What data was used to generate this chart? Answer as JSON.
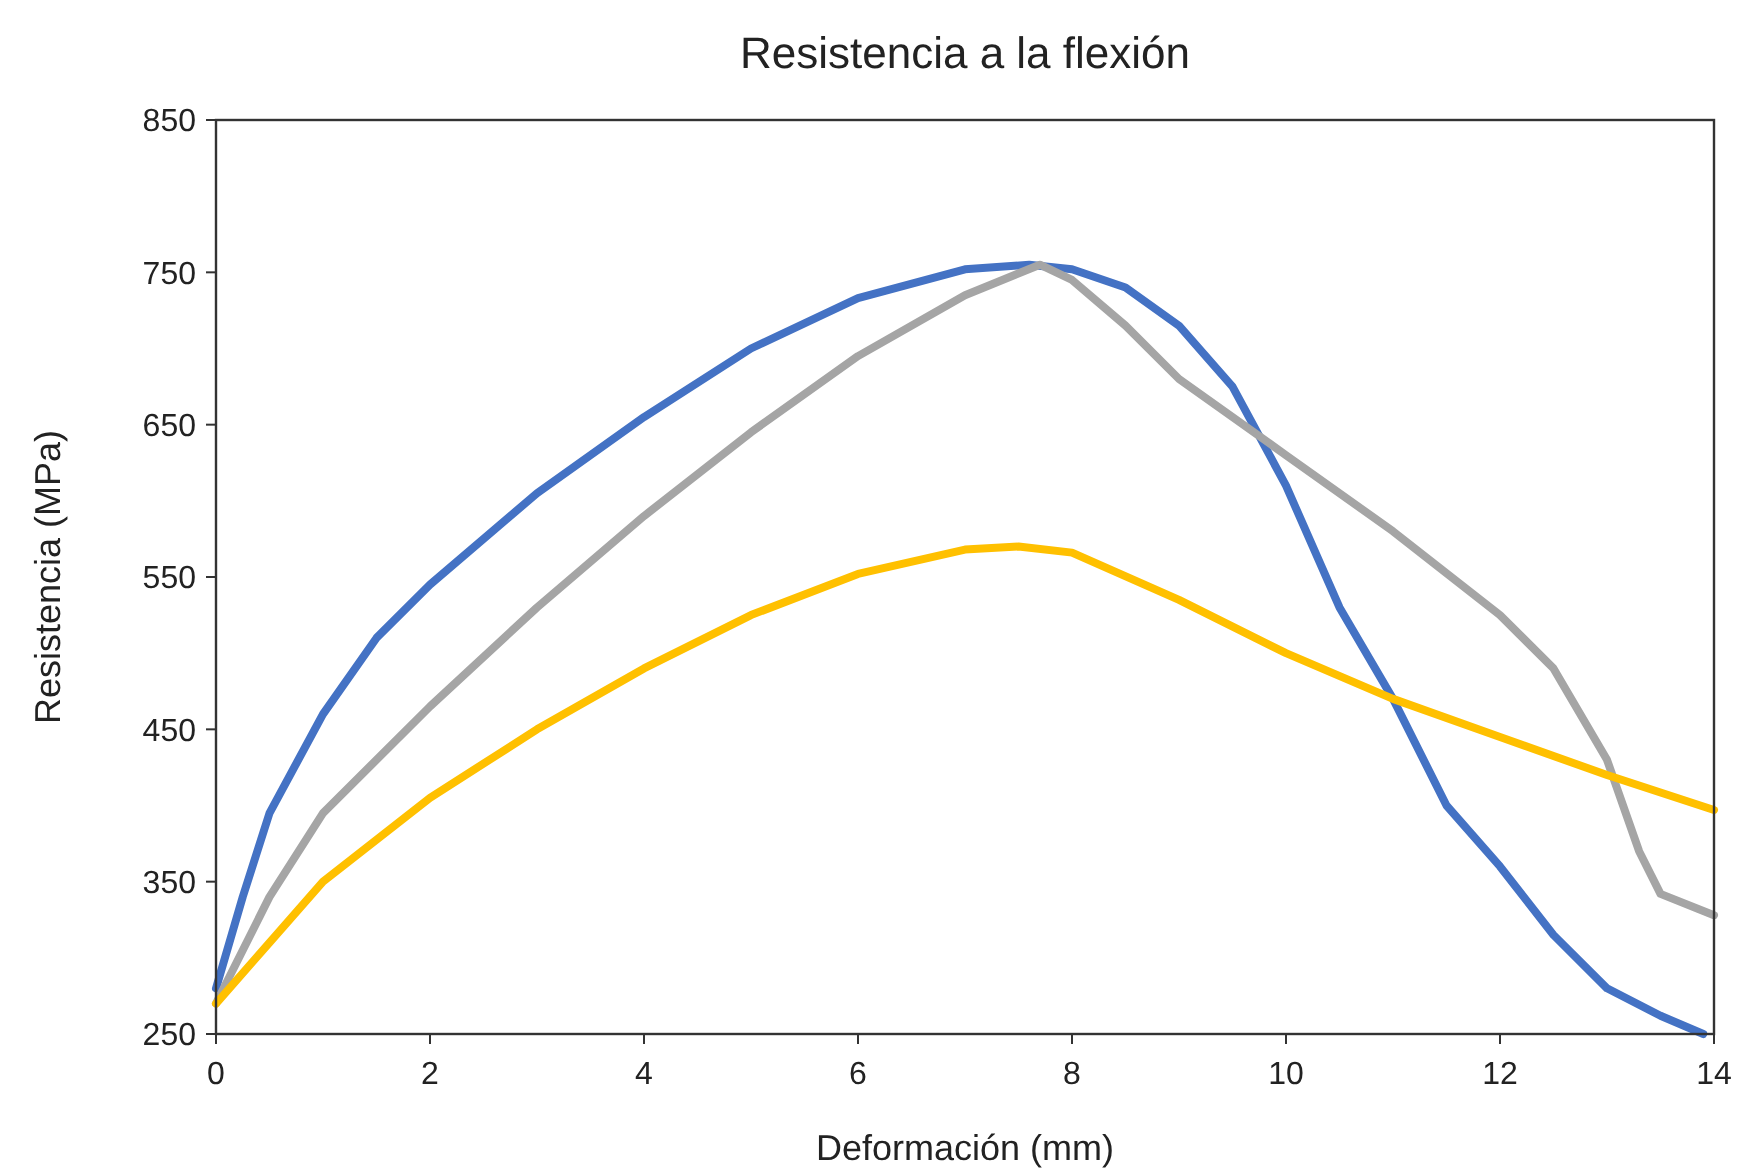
{
  "chart_data": {
    "type": "line",
    "title": "Resistencia a la flexión",
    "xlabel": "Deformación (mm)",
    "ylabel": "Resistencia (MPa)",
    "xlim": [
      0,
      14
    ],
    "xticks": [
      0,
      2,
      4,
      6,
      8,
      10,
      12,
      14
    ],
    "ylim": [
      250,
      850
    ],
    "yticks": [
      250,
      350,
      450,
      550,
      650,
      750,
      850
    ],
    "grid": false,
    "marker": "none",
    "line_style": "solid",
    "series": [
      {
        "color": "#4472c4",
        "x": [
          0,
          0.25,
          0.5,
          1,
          1.5,
          2,
          3,
          4,
          5,
          6,
          7,
          7.6,
          8,
          8.5,
          9,
          9.5,
          10,
          10.5,
          11,
          11.5,
          12,
          12.5,
          13,
          13.5,
          13.9
        ],
        "values": [
          280,
          340,
          395,
          460,
          510,
          545,
          605,
          655,
          700,
          733,
          752,
          755,
          752,
          740,
          715,
          675,
          610,
          530,
          470,
          400,
          360,
          315,
          280,
          262,
          250
        ]
      },
      {
        "color": "#a5a5a5",
        "x": [
          0,
          0.5,
          1,
          2,
          3,
          4,
          5,
          6,
          7,
          7.7,
          8,
          8.5,
          9,
          10,
          11,
          12,
          12.5,
          13,
          13.3,
          13.5,
          14
        ],
        "values": [
          270,
          340,
          395,
          465,
          530,
          590,
          645,
          695,
          735,
          755,
          745,
          715,
          680,
          630,
          580,
          525,
          490,
          430,
          370,
          342,
          328
        ]
      },
      {
        "color": "#ffc000",
        "x": [
          0,
          0.5,
          1,
          2,
          3,
          4,
          5,
          6,
          7,
          7.5,
          8,
          9,
          10,
          11,
          12,
          13,
          14
        ],
        "values": [
          270,
          310,
          350,
          405,
          450,
          490,
          525,
          552,
          568,
          570,
          566,
          535,
          500,
          470,
          445,
          420,
          397
        ]
      }
    ]
  }
}
